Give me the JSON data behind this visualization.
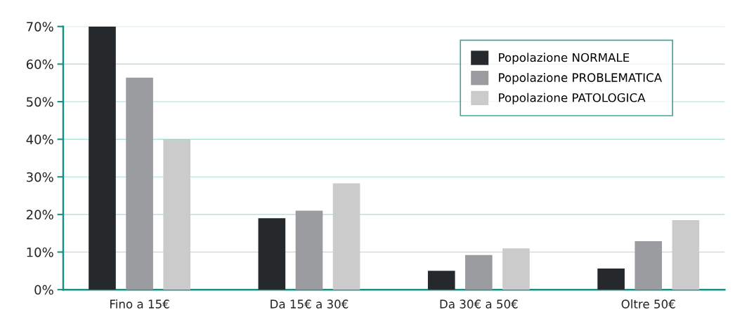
{
  "chart_data": {
    "type": "bar",
    "categories": [
      "Fino a 15€",
      "Da 15€ a 30€",
      "Da 30€ a 50€",
      "Oltre 50€"
    ],
    "series": [
      {
        "name": "Popolazione NORMALE",
        "color": "#25292c",
        "values": [
          70,
          19,
          5,
          5.6
        ]
      },
      {
        "name": "Popolazione PROBLEMATICA",
        "color": "#9a9c9f",
        "values": [
          56.4,
          21,
          9.2,
          12.9
        ]
      },
      {
        "name": "Popolazione PATOLOGICA",
        "color": "#cbcbcb",
        "values": [
          40,
          28.3,
          11,
          18.5
        ]
      }
    ],
    "ylim": [
      0,
      70
    ],
    "yticks": [
      {
        "value": 0,
        "label": "0%"
      },
      {
        "value": 10,
        "label": "10%"
      },
      {
        "value": 20,
        "label": "20%"
      },
      {
        "value": 30,
        "label": "30%"
      },
      {
        "value": 40,
        "label": "40%"
      },
      {
        "value": 50,
        "label": "50%"
      },
      {
        "value": 60,
        "label": "60%"
      },
      {
        "value": 70,
        "label": "70%"
      }
    ],
    "grid": "y",
    "legend": "top right"
  }
}
